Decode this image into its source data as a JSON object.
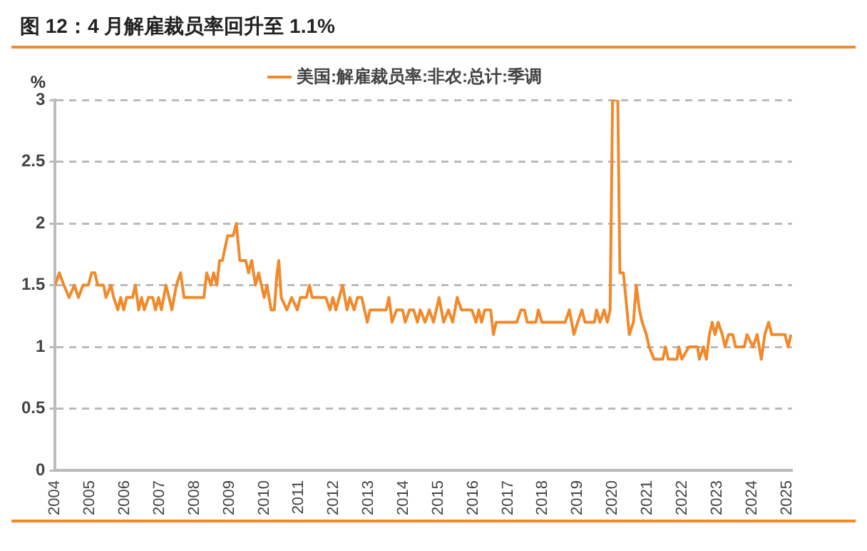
{
  "chart_data": {
    "type": "line",
    "title": "图 12：4 月解雇裁员率回升至 1.1%",
    "ylabel": "%",
    "legend": "top",
    "grid": "y",
    "line_style": "solid",
    "marker": "none",
    "xlim": [
      2004,
      2025.15
    ],
    "xticks": [
      2004,
      2005,
      2006,
      2007,
      2008,
      2009,
      2010,
      2011,
      2012,
      2013,
      2014,
      2015,
      2016,
      2017,
      2018,
      2019,
      2020,
      2021,
      2022,
      2023,
      2024,
      2025
    ],
    "ylim": [
      0,
      3
    ],
    "yticks": [
      0,
      0.5,
      1,
      1.5,
      2,
      2.5,
      3
    ],
    "series": [
      {
        "name": "美国:解雇裁员率:非农:总计:季调",
        "color": "#f08a2c",
        "x": [
          2004.0,
          2004.12,
          2004.25,
          2004.4,
          2004.55,
          2004.67,
          2004.8,
          2004.95,
          2005.05,
          2005.14,
          2005.22,
          2005.39,
          2005.46,
          2005.6,
          2005.68,
          2005.8,
          2005.88,
          2005.97,
          2006.05,
          2006.22,
          2006.3,
          2006.4,
          2006.48,
          2006.56,
          2006.68,
          2006.8,
          2006.88,
          2006.97,
          2007.05,
          2007.18,
          2007.27,
          2007.35,
          2007.48,
          2007.6,
          2007.7,
          2008.27,
          2008.35,
          2008.47,
          2008.55,
          2008.64,
          2008.72,
          2008.8,
          2008.95,
          2009.11,
          2009.2,
          2009.3,
          2009.47,
          2009.55,
          2009.64,
          2009.75,
          2009.84,
          2009.92,
          2010.0,
          2010.08,
          2010.2,
          2010.29,
          2010.37,
          2010.42,
          2010.49,
          2010.65,
          2010.79,
          2010.95,
          2011.04,
          2011.21,
          2011.3,
          2011.38,
          2011.77,
          2011.89,
          2011.97,
          2012.06,
          2012.25,
          2012.38,
          2012.46,
          2012.58,
          2012.68,
          2012.8,
          2012.96,
          2013.04,
          2013.5,
          2013.58,
          2013.67,
          2013.8,
          2013.97,
          2014.05,
          2014.17,
          2014.29,
          2014.4,
          2014.48,
          2014.62,
          2014.74,
          2014.86,
          2015.02,
          2015.15,
          2015.29,
          2015.41,
          2015.54,
          2015.66,
          2015.96,
          2016.08,
          2016.16,
          2016.24,
          2016.33,
          2016.5,
          2016.58,
          2016.66,
          2017.25,
          2017.37,
          2017.47,
          2017.55,
          2017.8,
          2017.87,
          2017.97,
          2018.64,
          2018.76,
          2018.89,
          2019.0,
          2019.12,
          2019.21,
          2019.48,
          2019.54,
          2019.64,
          2019.76,
          2019.85,
          2019.93,
          2020.0,
          2020.15,
          2020.21,
          2020.31,
          2020.38,
          2020.48,
          2020.6,
          2020.68,
          2020.77,
          2020.85,
          2020.97,
          2021.05,
          2021.19,
          2021.44,
          2021.52,
          2021.6,
          2021.85,
          2021.9,
          2021.99,
          2022.19,
          2022.44,
          2022.49,
          2022.61,
          2022.69,
          2022.78,
          2022.86,
          2022.94,
          2023.03,
          2023.15,
          2023.23,
          2023.33,
          2023.45,
          2023.53,
          2023.78,
          2023.86,
          2024.03,
          2024.15,
          2024.27,
          2024.37,
          2024.48,
          2024.57,
          2024.95,
          2025.04,
          2025.12
        ],
        "values": [
          1.5,
          1.6,
          1.5,
          1.4,
          1.5,
          1.4,
          1.5,
          1.5,
          1.6,
          1.6,
          1.5,
          1.5,
          1.4,
          1.5,
          1.4,
          1.3,
          1.4,
          1.3,
          1.4,
          1.4,
          1.5,
          1.3,
          1.4,
          1.3,
          1.4,
          1.4,
          1.3,
          1.4,
          1.3,
          1.5,
          1.4,
          1.3,
          1.5,
          1.6,
          1.4,
          1.4,
          1.6,
          1.5,
          1.6,
          1.5,
          1.7,
          1.7,
          1.9,
          1.9,
          2.0,
          1.7,
          1.7,
          1.6,
          1.7,
          1.5,
          1.6,
          1.5,
          1.4,
          1.5,
          1.3,
          1.3,
          1.6,
          1.7,
          1.4,
          1.3,
          1.4,
          1.3,
          1.4,
          1.4,
          1.5,
          1.4,
          1.4,
          1.3,
          1.4,
          1.3,
          1.5,
          1.3,
          1.4,
          1.3,
          1.4,
          1.4,
          1.2,
          1.3,
          1.3,
          1.4,
          1.2,
          1.3,
          1.3,
          1.2,
          1.3,
          1.3,
          1.2,
          1.3,
          1.2,
          1.3,
          1.2,
          1.4,
          1.2,
          1.3,
          1.2,
          1.4,
          1.3,
          1.3,
          1.2,
          1.3,
          1.2,
          1.3,
          1.3,
          1.1,
          1.2,
          1.2,
          1.3,
          1.3,
          1.2,
          1.2,
          1.3,
          1.2,
          1.2,
          1.3,
          1.1,
          1.2,
          1.3,
          1.2,
          1.2,
          1.3,
          1.2,
          1.3,
          1.2,
          1.3,
          3.0,
          3.0,
          1.6,
          1.6,
          1.4,
          1.1,
          1.2,
          1.5,
          1.3,
          1.2,
          1.1,
          1.0,
          0.9,
          0.9,
          1.0,
          0.9,
          0.9,
          1.0,
          0.9,
          1.0,
          1.0,
          0.9,
          1.0,
          0.9,
          1.1,
          1.2,
          1.1,
          1.2,
          1.1,
          1.0,
          1.1,
          1.1,
          1.0,
          1.0,
          1.1,
          1.0,
          1.1,
          0.9,
          1.1,
          1.2,
          1.1,
          1.1,
          1.0,
          1.1
        ]
      }
    ]
  }
}
